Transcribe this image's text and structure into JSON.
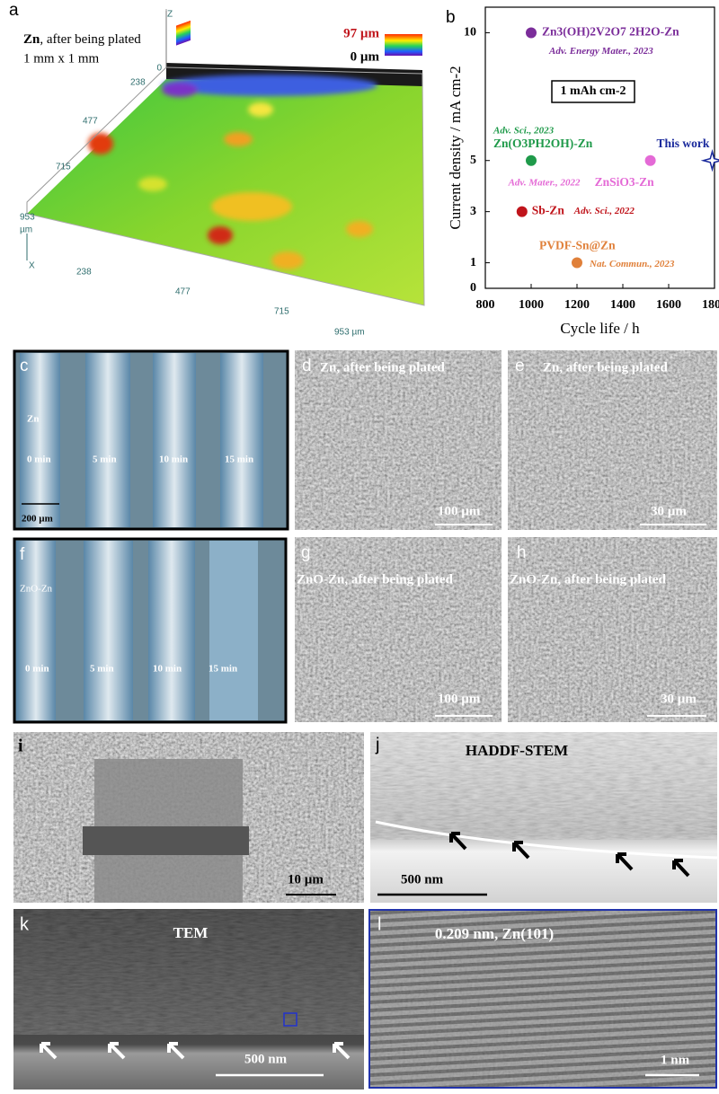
{
  "chart_data": {
    "type": "scatter",
    "panel_label": "b",
    "xlabel": "Cycle life / h",
    "ylabel": "Current density / mA cm-2",
    "xlim": [
      800,
      1800
    ],
    "xticks": [
      800,
      1000,
      1200,
      1400,
      1600,
      1800
    ],
    "ylim": [
      0,
      11
    ],
    "yticks": [
      0,
      1,
      3,
      5,
      10
    ],
    "condition": "1 mAh cm-2",
    "series": [
      {
        "name": "Zn3(OH)2V2O7 2H2O-Zn",
        "color": "#7b2d9a",
        "marker": "circle",
        "x": [
          1000
        ],
        "values": [
          10
        ],
        "source": "Adv. Energy Mater., 2023"
      },
      {
        "name": "Zn(O3PH2OH)-Zn",
        "color": "#1f9a4a",
        "marker": "circle",
        "x": [
          1000
        ],
        "values": [
          5
        ],
        "source": "Adv. Sci., 2023"
      },
      {
        "name": "ZnSiO3-Zn",
        "color": "#e46ad6",
        "marker": "circle",
        "x": [
          1520
        ],
        "values": [
          5
        ],
        "source": "Adv. Mater., 2022"
      },
      {
        "name": "Sb-Zn",
        "color": "#c0141b",
        "marker": "circle",
        "x": [
          960
        ],
        "values": [
          3
        ],
        "source": "Adv. Sci., 2022"
      },
      {
        "name": "PVDF-Sn@Zn",
        "color": "#e0803a",
        "marker": "circle",
        "x": [
          1200
        ],
        "values": [
          1
        ],
        "source": "Nat. Commun., 2023"
      },
      {
        "name": "This work",
        "color": "#1a2a9c",
        "marker": "star",
        "x": [
          1790
        ],
        "values": [
          5
        ]
      }
    ]
  },
  "panels": {
    "a": {
      "label": "a",
      "title_bold": "Zn",
      "title": ", after being plated",
      "size": "1 mm x 1 mm",
      "scale_max": "97 µm",
      "scale_min": "0 µm",
      "z_axis": "Z",
      "z_zero": "0",
      "x_axis": "X",
      "left_ticks": [
        "238",
        "477",
        "715",
        "953"
      ],
      "left_unit": "µm",
      "bottom_ticks": [
        "238",
        "477",
        "715",
        "953 µm"
      ]
    },
    "c": {
      "label": "c",
      "sample": "Zn",
      "times": [
        "0 min",
        "5 min",
        "10 min",
        "15 min"
      ],
      "scale": "200 µm"
    },
    "d": {
      "label": "d",
      "caption": "Zn, after being plated",
      "scale": "100 µm"
    },
    "e": {
      "label": "e",
      "caption": "Zn, after being plated",
      "scale": "30 µm"
    },
    "f": {
      "label": "f",
      "sample": "ZnO-Zn",
      "times": [
        "0 min",
        "5 min",
        "10 min",
        "15 min"
      ]
    },
    "g": {
      "label": "g",
      "caption": "ZnO-Zn, after being plated",
      "scale": "100 µm"
    },
    "h": {
      "label": "h",
      "caption": "ZnO-Zn, after being plated",
      "scale": "30 µm"
    },
    "i": {
      "label": "i",
      "scale": "10 µm"
    },
    "j": {
      "label": "j",
      "caption": "HADDF-STEM",
      "scale": "500 nm"
    },
    "k": {
      "label": "k",
      "caption": "TEM",
      "scale": "500 nm"
    },
    "l": {
      "label": "l",
      "caption": "0.209 nm, Zn(101)",
      "scale": "1 nm"
    }
  }
}
